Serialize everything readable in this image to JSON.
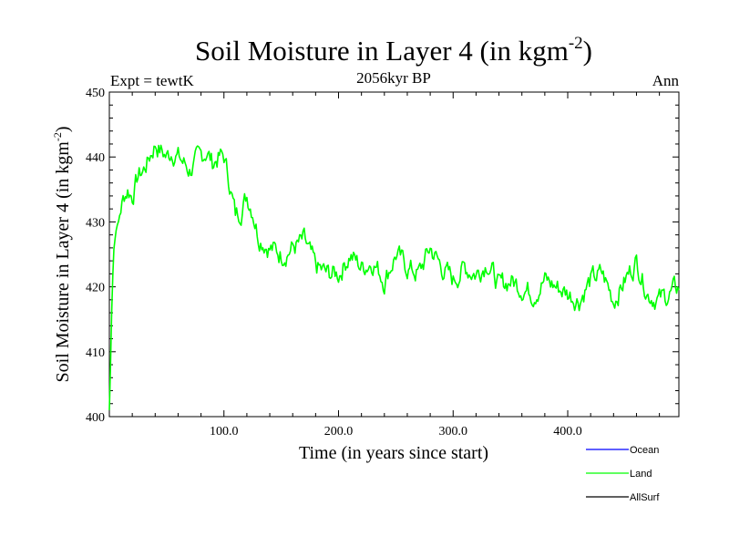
{
  "chart_data": {
    "type": "line",
    "title": "Soil Moisture in Layer 4 (in kgm",
    "title_sup": "-2",
    "title_close": ")",
    "subtitle_left": "Expt = tewtK",
    "subtitle_center": "2056kyr BP",
    "subtitle_right": "Ann",
    "xlabel": "Time (in years since start)",
    "ylabel": "Soil Moisture in Layer 4 (in kgm",
    "ylabel_sup": "-2",
    "ylabel_close": ")",
    "xlim": [
      0,
      497
    ],
    "ylim": [
      400,
      450
    ],
    "xticks": [
      100,
      200,
      300,
      400
    ],
    "xtick_labels": [
      "100.0",
      "200.0",
      "300.0",
      "400.0"
    ],
    "yticks": [
      400,
      410,
      420,
      430,
      440,
      450
    ],
    "ytick_labels": [
      "400",
      "410",
      "420",
      "430",
      "440",
      "450"
    ],
    "legend": [
      {
        "name": "Ocean",
        "color": "#0000ff"
      },
      {
        "name": "Land",
        "color": "#00ff00"
      },
      {
        "name": "AllSurf",
        "color": "#000000"
      }
    ],
    "series": [
      {
        "name": "Land",
        "color": "#00ff00",
        "x": [
          0,
          1,
          2,
          3,
          4,
          6,
          8,
          10,
          13,
          16,
          20,
          25,
          30,
          35,
          40,
          45,
          50,
          55,
          60,
          65,
          70,
          75,
          80,
          85,
          90,
          95,
          100,
          105,
          110,
          115,
          120,
          125,
          130,
          140,
          150,
          160,
          170,
          180,
          190,
          200,
          210,
          220,
          230,
          240,
          250,
          260,
          270,
          280,
          290,
          300,
          310,
          320,
          330,
          340,
          350,
          360,
          370,
          380,
          390,
          400,
          410,
          420,
          430,
          440,
          450,
          460,
          470,
          480,
          490,
          497
        ],
        "y": [
          401,
          408,
          416,
          422,
          426,
          429,
          430,
          432,
          434,
          435,
          434,
          437,
          438,
          440,
          442,
          441,
          440,
          441,
          440,
          439,
          438,
          439,
          440,
          441,
          439,
          440,
          440,
          436,
          431,
          432,
          434,
          432,
          428,
          426,
          425,
          426,
          427,
          423,
          422,
          422,
          425,
          423,
          424,
          421,
          425,
          423,
          422,
          426,
          423,
          421,
          423,
          422,
          424,
          420,
          421,
          420,
          419,
          421,
          420,
          419,
          418,
          421,
          422,
          418,
          421,
          424,
          419,
          418,
          419,
          420
        ]
      }
    ]
  }
}
